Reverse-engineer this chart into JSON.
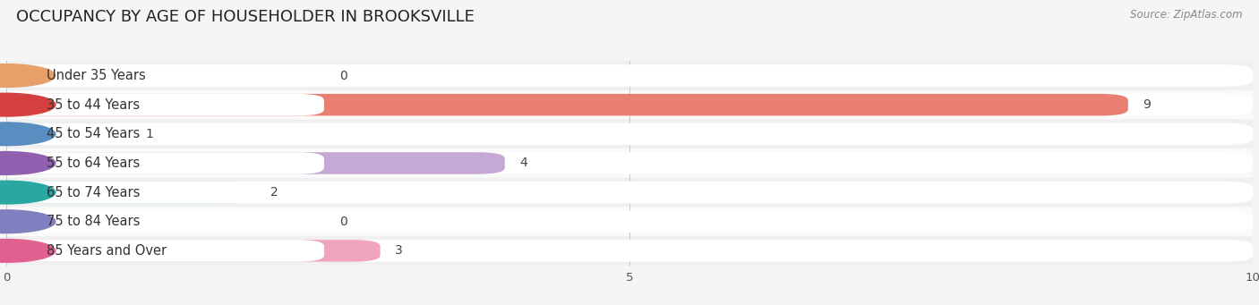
{
  "title": "OCCUPANCY BY AGE OF HOUSEHOLDER IN BROOKSVILLE",
  "source": "Source: ZipAtlas.com",
  "categories": [
    "Under 35 Years",
    "35 to 44 Years",
    "45 to 54 Years",
    "55 to 64 Years",
    "65 to 74 Years",
    "75 to 84 Years",
    "85 Years and Over"
  ],
  "values": [
    0,
    9,
    1,
    4,
    2,
    0,
    3
  ],
  "bar_colors": [
    "#f2c49e",
    "#e97f72",
    "#a9c9e8",
    "#c5a8d4",
    "#6dc5bc",
    "#b3b3e0",
    "#f0a5be"
  ],
  "dot_colors": [
    "#e8a06a",
    "#d44040",
    "#5a8ec0",
    "#9060b0",
    "#28a8a0",
    "#8080c0",
    "#e06090"
  ],
  "row_colors": [
    "#f0f0f0",
    "#fafafa",
    "#f0f0f0",
    "#fafafa",
    "#f0f0f0",
    "#fafafa",
    "#f0f0f0"
  ],
  "xlim": [
    0,
    10
  ],
  "xticks": [
    0,
    5,
    10
  ],
  "background_color": "#f5f5f5",
  "title_fontsize": 13,
  "label_fontsize": 10.5,
  "value_fontsize": 10
}
